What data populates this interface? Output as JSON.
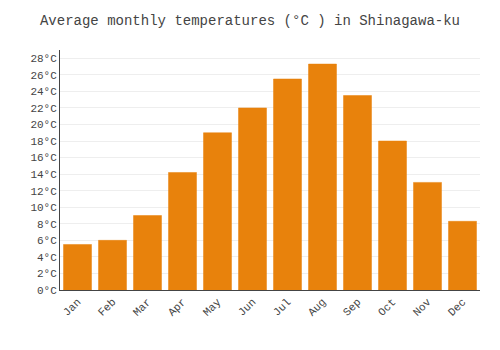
{
  "chart_data": {
    "type": "bar",
    "title": "Average monthly temperatures (°C ) in Shinagawa-ku",
    "categories": [
      "Jan",
      "Feb",
      "Mar",
      "Apr",
      "May",
      "Jun",
      "Jul",
      "Aug",
      "Sep",
      "Oct",
      "Nov",
      "Dec"
    ],
    "values": [
      5.5,
      6.0,
      9.0,
      14.2,
      19.0,
      22.0,
      25.5,
      27.3,
      23.5,
      18.0,
      13.0,
      8.3
    ],
    "color": "#E8820C",
    "ylim": [
      0,
      29
    ],
    "yticks": [
      {
        "value": 0,
        "label": "0°C"
      },
      {
        "value": 2,
        "label": "2°C"
      },
      {
        "value": 4,
        "label": "4°C"
      },
      {
        "value": 6,
        "label": "6°C"
      },
      {
        "value": 8,
        "label": "8°C"
      },
      {
        "value": 10,
        "label": "10°C"
      },
      {
        "value": 12,
        "label": "12°C"
      },
      {
        "value": 14,
        "label": "14°C"
      },
      {
        "value": 16,
        "label": "16°C"
      },
      {
        "value": 18,
        "label": "18°C"
      },
      {
        "value": 20,
        "label": "20°C"
      },
      {
        "value": 22,
        "label": "22°C"
      },
      {
        "value": 24,
        "label": "24°C"
      },
      {
        "value": 26,
        "label": "26°C"
      },
      {
        "value": 28,
        "label": "28°C"
      }
    ],
    "grid": true
  }
}
